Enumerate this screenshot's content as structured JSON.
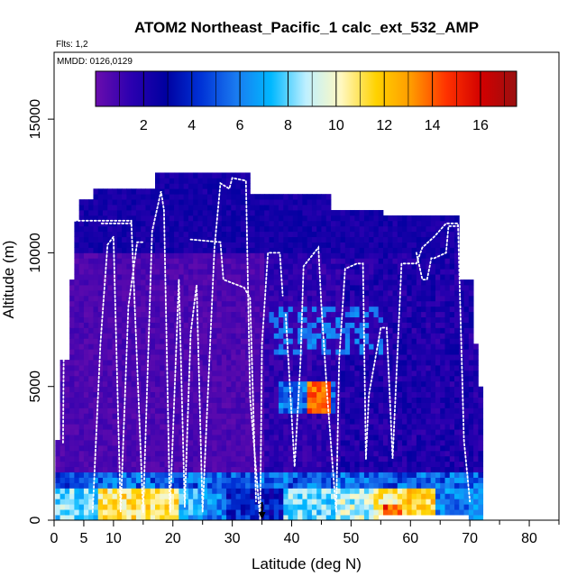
{
  "chart_data": {
    "type": "heatmap",
    "title": "ATOM2 Northeast_Pacific_1 calc_ext_532_AMP",
    "flights_note": "Flts: 1,2",
    "date_note": "MMDD: 0126,0129",
    "xlabel": "Latitude (deg N)",
    "ylabel": "Altitude (m)",
    "xlim": [
      0,
      85
    ],
    "ylim": [
      0,
      17500
    ],
    "x_ticks": [
      0,
      5,
      10,
      20,
      30,
      40,
      50,
      60,
      70,
      80
    ],
    "x_minor_ticks": [
      15,
      25,
      35,
      45,
      55,
      65,
      75,
      85
    ],
    "y_ticks": [
      0,
      5000,
      10000,
      15000
    ],
    "colorbar": {
      "range": [
        0,
        17.5
      ],
      "ticks": [
        2,
        4,
        6,
        8,
        10,
        12,
        14,
        16
      ],
      "colors": [
        "#6a0dad",
        "#2c00b0",
        "#0000a0",
        "#0032d6",
        "#1a7af0",
        "#00b8ff",
        "#bff0ff",
        "#fff8c0",
        "#ffd200",
        "#ff9a00",
        "#ff3200",
        "#d20000",
        "#9a1010"
      ]
    },
    "flight_markers": [
      35
    ],
    "heatmap_note": "Gridded measured extinction values by latitude and altitude; background mostly 0-2, near-surface layer peaks ~8-13, mid-level layer at ~4.5 km near 38-46 N peaks ~13"
  }
}
